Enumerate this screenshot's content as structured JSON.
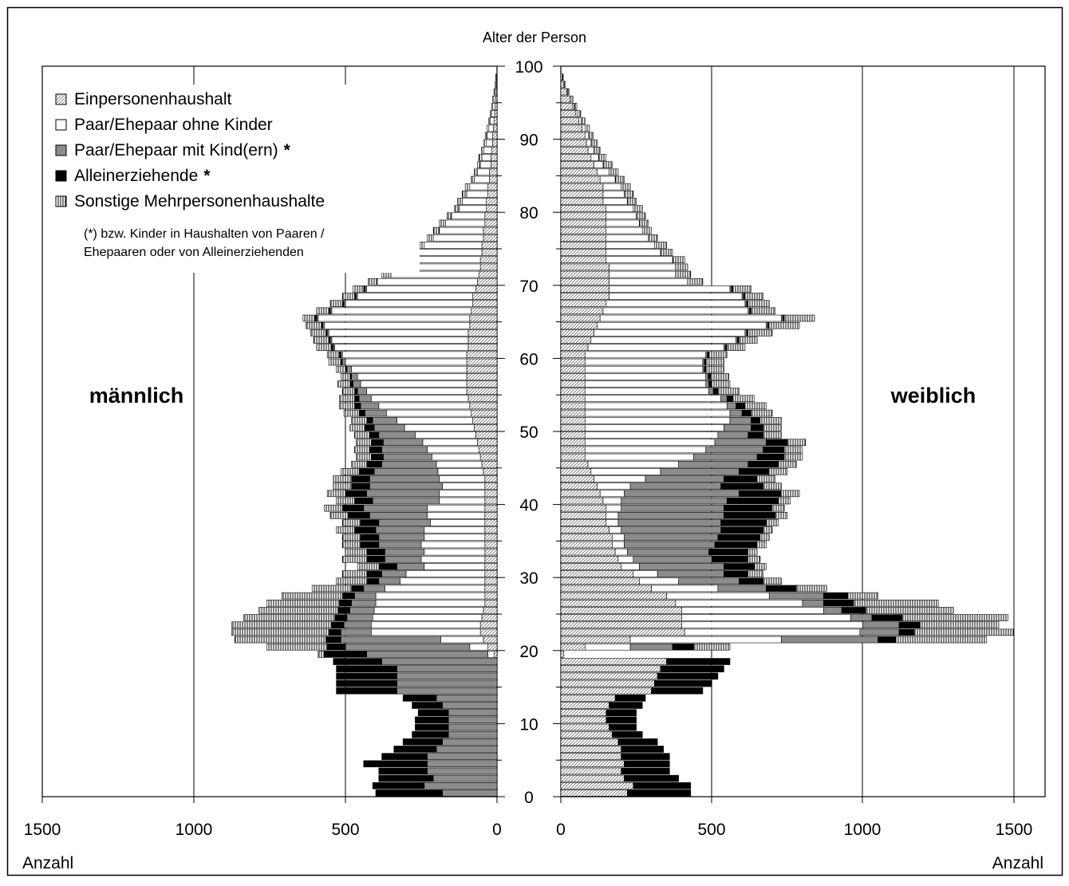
{
  "chart_data": {
    "type": "bar",
    "subtype": "population-pyramid-stacked",
    "title": "Alter der Person",
    "xlabel_left": "Anzahl",
    "xlabel_right": "Anzahl",
    "side_labels": {
      "left": "männlich",
      "right": "weiblich"
    },
    "xlim": [
      0,
      1500
    ],
    "x_ticks": [
      1500,
      1000,
      500,
      0
    ],
    "x_ticks_right": [
      0,
      500,
      1000,
      1500
    ],
    "y_ticks": [
      0,
      10,
      20,
      30,
      40,
      50,
      60,
      70,
      80,
      90,
      100
    ],
    "ylim": [
      0,
      100
    ],
    "grid": "vertical at 1000 (left); 500, 1000, 1500 (right)",
    "legend_position": "top-left",
    "legend": [
      {
        "label": "Einpersonenhaushalt",
        "pattern": "diagonal-hatch"
      },
      {
        "label": "Paar/Ehepaar ohne Kinder",
        "pattern": "white"
      },
      {
        "label": "Paar/Ehepaar mit Kind(ern)",
        "pattern": "gray",
        "suffix": "*"
      },
      {
        "label": "Alleinerziehende",
        "pattern": "black",
        "suffix": "*"
      },
      {
        "label": "Sonstige Mehrpersonenhaushalte",
        "pattern": "vertical-hatch"
      }
    ],
    "footnote_line1": "(*) bzw. Kinder in Haushalten von Paaren /",
    "footnote_line2": "Ehepaaren oder von Alleinerziehenden",
    "series_order": [
      "Einpersonenhaushalt",
      "Paar/Ehepaar ohne Kinder",
      "Paar/Ehepaar mit Kind(ern)",
      "Alleinerziehende",
      "Sonstige Mehrpersonenhaushalte"
    ],
    "age_groups": [
      0,
      1,
      2,
      3,
      4,
      5,
      6,
      7,
      8,
      9,
      10,
      11,
      12,
      13,
      14,
      15,
      16,
      17,
      18,
      19,
      20,
      21,
      22,
      23,
      24,
      25,
      26,
      27,
      28,
      29,
      30,
      31,
      32,
      33,
      34,
      35,
      36,
      37,
      38,
      39,
      40,
      41,
      42,
      43,
      44,
      45,
      46,
      47,
      48,
      49,
      50,
      51,
      52,
      53,
      54,
      55,
      56,
      57,
      58,
      59,
      60,
      61,
      62,
      63,
      64,
      65,
      66,
      67,
      68,
      69,
      70,
      71,
      72,
      73,
      74,
      75,
      76,
      77,
      78,
      79,
      80,
      81,
      82,
      83,
      84,
      85,
      86,
      87,
      88,
      89,
      90,
      91,
      92,
      93,
      94,
      95,
      96,
      97,
      98
    ],
    "male": {
      "Einpersonenhaushalt": [
        0,
        0,
        0,
        0,
        0,
        0,
        0,
        0,
        0,
        0,
        0,
        0,
        0,
        0,
        0,
        0,
        0,
        0,
        0,
        10,
        30,
        45,
        55,
        55,
        50,
        45,
        40,
        40,
        40,
        40,
        40,
        40,
        40,
        40,
        40,
        40,
        40,
        40,
        40,
        40,
        40,
        40,
        40,
        40,
        45,
        50,
        55,
        60,
        65,
        70,
        75,
        80,
        85,
        90,
        95,
        100,
        100,
        100,
        100,
        100,
        100,
        95,
        95,
        95,
        90,
        90,
        85,
        80,
        80,
        70,
        65,
        60,
        55,
        55,
        50,
        50,
        45,
        45,
        40,
        40,
        35,
        35,
        30,
        30,
        25,
        25,
        20,
        20,
        18,
        15,
        15,
        12,
        10,
        8,
        6,
        5,
        3,
        2,
        1
      ],
      "Paar/Ehepaar ohne Kinder": [
        0,
        0,
        0,
        0,
        0,
        0,
        0,
        0,
        0,
        0,
        0,
        0,
        0,
        0,
        0,
        0,
        0,
        0,
        0,
        20,
        60,
        140,
        360,
        360,
        360,
        360,
        360,
        360,
        330,
        280,
        260,
        200,
        210,
        200,
        210,
        200,
        200,
        180,
        190,
        190,
        150,
        150,
        140,
        150,
        150,
        150,
        160,
        170,
        180,
        200,
        230,
        250,
        280,
        300,
        320,
        330,
        350,
        360,
        380,
        400,
        410,
        440,
        450,
        460,
        480,
        500,
        460,
        420,
        380,
        360,
        330,
        290,
        260,
        230,
        210,
        190,
        165,
        145,
        130,
        110,
        90,
        80,
        70,
        60,
        50,
        40,
        35,
        30,
        25,
        20,
        18,
        15,
        12,
        10,
        8,
        6,
        5,
        3,
        2
      ],
      "Paar/Ehepaar mit Kind(ern)": [
        180,
        240,
        210,
        230,
        230,
        230,
        200,
        180,
        160,
        160,
        160,
        160,
        180,
        200,
        330,
        330,
        330,
        330,
        380,
        400,
        410,
        330,
        100,
        90,
        85,
        80,
        80,
        70,
        70,
        70,
        80,
        90,
        120,
        130,
        140,
        150,
        160,
        170,
        190,
        210,
        220,
        240,
        240,
        230,
        210,
        180,
        160,
        150,
        130,
        120,
        100,
        80,
        70,
        60,
        40,
        30,
        25,
        20,
        15,
        10,
        5,
        5,
        5,
        5,
        5,
        5,
        5,
        5,
        5,
        5,
        0,
        0,
        0,
        0,
        0,
        0,
        0,
        0,
        0,
        0,
        0,
        0,
        0,
        0,
        0,
        0,
        0,
        0,
        0,
        0,
        0,
        0,
        0,
        0,
        0,
        0,
        0,
        0,
        0
      ],
      "Alleinerziehende": [
        220,
        170,
        180,
        160,
        210,
        150,
        140,
        130,
        120,
        110,
        110,
        100,
        100,
        110,
        200,
        200,
        200,
        200,
        160,
        140,
        60,
        50,
        40,
        40,
        40,
        40,
        40,
        40,
        40,
        40,
        50,
        60,
        60,
        60,
        60,
        60,
        70,
        60,
        70,
        70,
        60,
        70,
        60,
        60,
        50,
        50,
        40,
        40,
        40,
        30,
        30,
        20,
        20,
        20,
        15,
        10,
        10,
        5,
        5,
        5,
        5,
        5,
        5,
        5,
        5,
        5,
        5,
        5,
        5,
        5,
        0,
        0,
        0,
        0,
        0,
        0,
        0,
        0,
        0,
        0,
        0,
        0,
        0,
        0,
        0,
        0,
        0,
        0,
        0,
        0,
        0,
        0,
        0,
        0,
        0,
        0,
        0,
        0,
        0
      ],
      "Sonstige Mehrpersonenhaushalte": [
        0,
        0,
        0,
        0,
        0,
        0,
        0,
        0,
        0,
        0,
        0,
        0,
        0,
        0,
        0,
        0,
        0,
        0,
        0,
        20,
        200,
        300,
        320,
        330,
        300,
        260,
        240,
        200,
        130,
        100,
        80,
        70,
        80,
        70,
        60,
        60,
        60,
        60,
        60,
        60,
        60,
        60,
        60,
        60,
        60,
        50,
        50,
        50,
        50,
        50,
        50,
        50,
        50,
        50,
        50,
        40,
        40,
        30,
        30,
        40,
        40,
        50,
        50,
        50,
        50,
        40,
        40,
        40,
        40,
        35,
        30,
        30,
        25,
        25,
        25,
        20,
        20,
        20,
        20,
        15,
        15,
        15,
        15,
        15,
        10,
        10,
        10,
        10,
        8,
        8,
        6,
        6,
        5,
        4,
        3,
        3,
        2,
        1,
        1
      ]
    },
    "female": {
      "Einpersonenhaushalt": [
        220,
        240,
        210,
        200,
        210,
        200,
        200,
        190,
        170,
        160,
        150,
        150,
        160,
        180,
        300,
        310,
        320,
        330,
        350,
        10,
        80,
        230,
        410,
        400,
        400,
        400,
        380,
        350,
        300,
        260,
        240,
        200,
        190,
        180,
        170,
        170,
        160,
        150,
        150,
        150,
        140,
        130,
        120,
        110,
        100,
        90,
        80,
        80,
        80,
        80,
        80,
        80,
        80,
        80,
        80,
        80,
        80,
        80,
        80,
        80,
        80,
        90,
        100,
        110,
        120,
        130,
        140,
        150,
        160,
        160,
        160,
        160,
        160,
        150,
        150,
        150,
        150,
        150,
        150,
        150,
        150,
        140,
        140,
        140,
        130,
        120,
        110,
        100,
        90,
        85,
        80,
        70,
        60,
        50,
        40,
        30,
        20,
        10,
        5
      ],
      "Paar/Ehepaar ohne Kinder": [
        0,
        0,
        0,
        0,
        0,
        0,
        0,
        0,
        0,
        0,
        0,
        0,
        0,
        0,
        0,
        0,
        0,
        0,
        0,
        0,
        150,
        500,
        580,
        600,
        560,
        470,
        420,
        340,
        220,
        130,
        80,
        60,
        50,
        40,
        40,
        40,
        40,
        40,
        40,
        50,
        60,
        80,
        110,
        170,
        230,
        300,
        360,
        400,
        430,
        440,
        460,
        480,
        480,
        470,
        450,
        410,
        400,
        400,
        390,
        390,
        400,
        450,
        480,
        500,
        560,
        600,
        480,
        460,
        440,
        400,
        260,
        220,
        220,
        220,
        180,
        160,
        140,
        120,
        110,
        100,
        90,
        80,
        70,
        60,
        50,
        40,
        30,
        25,
        20,
        15,
        12,
        10,
        8,
        6,
        5,
        4,
        3,
        2,
        1
      ],
      "Paar/Ehepaar mit Kind(ern)": [
        0,
        0,
        0,
        0,
        0,
        0,
        0,
        0,
        0,
        0,
        0,
        0,
        0,
        0,
        0,
        0,
        0,
        0,
        0,
        0,
        140,
        320,
        130,
        120,
        70,
        60,
        70,
        180,
        160,
        200,
        220,
        280,
        260,
        270,
        300,
        310,
        330,
        340,
        350,
        340,
        350,
        380,
        300,
        260,
        260,
        230,
        210,
        190,
        170,
        100,
        90,
        70,
        40,
        30,
        20,
        15,
        10,
        8,
        5,
        5,
        5,
        5,
        5,
        5,
        5,
        5,
        5,
        5,
        5,
        5,
        0,
        0,
        0,
        0,
        0,
        0,
        0,
        0,
        0,
        0,
        0,
        0,
        0,
        0,
        0,
        0,
        0,
        0,
        0,
        0,
        0,
        0,
        0,
        0,
        0,
        0,
        0,
        0,
        0
      ],
      "Alleinerziehende": [
        210,
        190,
        180,
        160,
        150,
        160,
        140,
        130,
        100,
        90,
        100,
        100,
        110,
        100,
        170,
        190,
        200,
        210,
        210,
        0,
        70,
        60,
        50,
        70,
        100,
        80,
        100,
        80,
        100,
        80,
        80,
        100,
        120,
        130,
        140,
        140,
        140,
        150,
        170,
        160,
        170,
        140,
        140,
        110,
        100,
        100,
        90,
        70,
        70,
        50,
        40,
        30,
        30,
        30,
        20,
        15,
        10,
        8,
        5,
        5,
        5,
        5,
        5,
        5,
        5,
        5,
        5,
        5,
        5,
        5,
        0,
        0,
        0,
        0,
        0,
        0,
        0,
        0,
        0,
        0,
        0,
        0,
        0,
        0,
        0,
        0,
        0,
        0,
        0,
        0,
        0,
        0,
        0,
        0,
        0,
        0,
        0,
        0,
        0
      ],
      "Sonstige Mehrpersonenhaushalte": [
        0,
        0,
        0,
        0,
        0,
        0,
        0,
        0,
        0,
        0,
        0,
        0,
        0,
        0,
        0,
        0,
        0,
        0,
        0,
        0,
        120,
        300,
        330,
        260,
        350,
        290,
        280,
        100,
        100,
        60,
        50,
        40,
        40,
        30,
        30,
        30,
        30,
        40,
        40,
        40,
        40,
        60,
        60,
        60,
        60,
        60,
        60,
        60,
        60,
        60,
        60,
        70,
        70,
        70,
        70,
        70,
        60,
        60,
        60,
        60,
        60,
        60,
        60,
        80,
        100,
        100,
        80,
        70,
        60,
        60,
        50,
        50,
        40,
        40,
        40,
        40,
        30,
        30,
        30,
        30,
        30,
        30,
        30,
        30,
        30,
        30,
        30,
        25,
        20,
        20,
        15,
        15,
        12,
        10,
        8,
        6,
        4,
        3,
        2
      ]
    }
  }
}
